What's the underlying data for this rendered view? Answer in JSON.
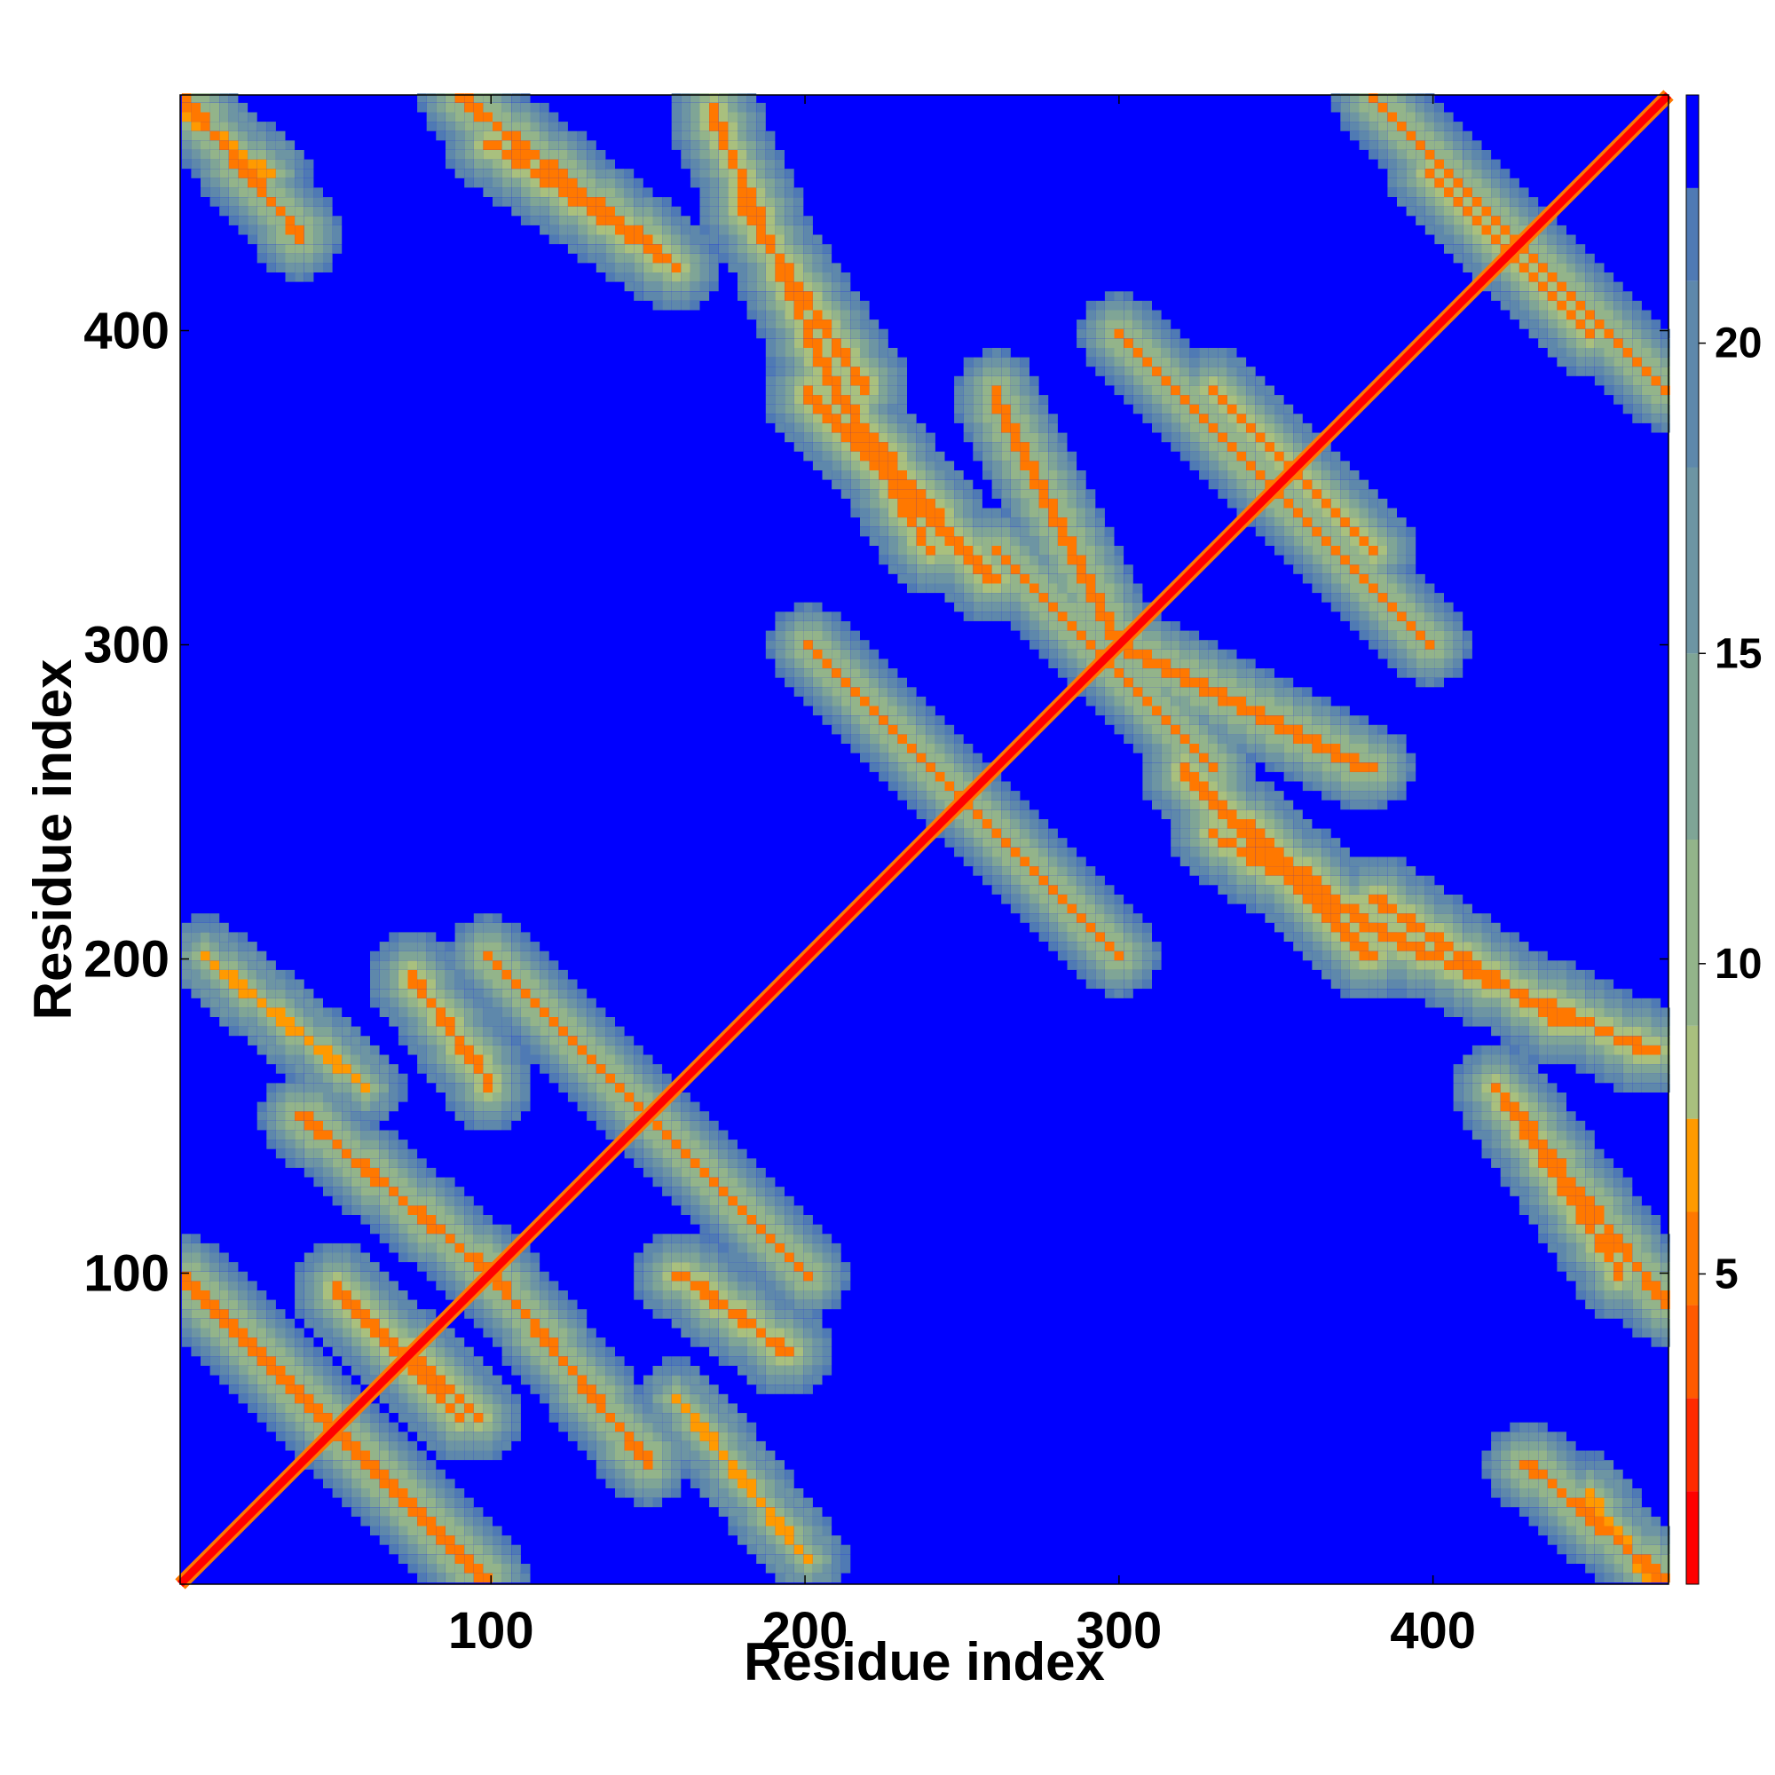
{
  "chart_data": {
    "type": "heatmap",
    "xlabel": "Residue index",
    "ylabel": "Residue index",
    "n_residues": 475,
    "xlim": [
      1,
      475
    ],
    "ylim": [
      1,
      475
    ],
    "x_ticks": [
      100,
      200,
      300,
      400
    ],
    "y_ticks": [
      100,
      200,
      300,
      400
    ],
    "x_tick_labels": [
      "100",
      "200",
      "300",
      "400"
    ],
    "y_tick_labels": [
      "100",
      "200",
      "300",
      "400"
    ],
    "colorbar": {
      "range": [
        0,
        24
      ],
      "ticks": [
        5,
        10,
        15,
        20
      ],
      "tick_labels": [
        "5",
        "10",
        "15",
        "20"
      ],
      "levels": [
        {
          "upper": 1.5,
          "color": "#ff0000"
        },
        {
          "upper": 3.0,
          "color": "#ff2a00"
        },
        {
          "upper": 4.5,
          "color": "#ff5a00"
        },
        {
          "upper": 6.0,
          "color": "#ff7800"
        },
        {
          "upper": 7.5,
          "color": "#ff9a00"
        },
        {
          "upper": 9.0,
          "color": "#a9c07e"
        },
        {
          "upper": 12.0,
          "color": "#93b48a"
        },
        {
          "upper": 15.0,
          "color": "#7fa596"
        },
        {
          "upper": 18.0,
          "color": "#6d95a3"
        },
        {
          "upper": 21.0,
          "color": "#5e88ab"
        },
        {
          "upper": 22.5,
          "color": "#4f7ab4"
        },
        {
          "upper": 24.0,
          "color": "#0000ff"
        }
      ]
    },
    "background_color": "#0000ff",
    "diagonal_color": "#ff0000",
    "contact_bands": [
      {
        "i_start": 1,
        "i_end": 100,
        "j_start": 100,
        "j_end": 1,
        "min_distance": 6
      },
      {
        "i_start": 50,
        "i_end": 95,
        "j_start": 95,
        "j_end": 55,
        "min_distance": 5
      },
      {
        "i_start": 55,
        "i_end": 90,
        "j_start": 90,
        "j_end": 55,
        "min_distance": 5
      },
      {
        "i_start": 75,
        "i_end": 100,
        "j_start": 195,
        "j_end": 160,
        "min_distance": 5
      },
      {
        "i_start": 160,
        "i_end": 195,
        "j_start": 100,
        "j_end": 75,
        "min_distance": 5
      },
      {
        "i_start": 100,
        "i_end": 200,
        "j_start": 200,
        "j_end": 100,
        "min_distance": 6
      },
      {
        "i_start": 160,
        "i_end": 200,
        "j_start": 60,
        "j_end": 10,
        "min_distance": 7
      },
      {
        "i_start": 10,
        "i_end": 60,
        "j_start": 200,
        "j_end": 160,
        "min_distance": 7
      },
      {
        "i_start": 100,
        "i_end": 150,
        "j_start": 100,
        "j_end": 40,
        "min_distance": 6
      },
      {
        "i_start": 40,
        "i_end": 100,
        "j_start": 150,
        "j_end": 100,
        "min_distance": 6
      },
      {
        "i_start": 200,
        "i_end": 300,
        "j_start": 300,
        "j_end": 200,
        "min_distance": 6
      },
      {
        "i_start": 210,
        "i_end": 250,
        "j_start": 380,
        "j_end": 330,
        "min_distance": 5
      },
      {
        "i_start": 330,
        "i_end": 380,
        "j_start": 250,
        "j_end": 210,
        "min_distance": 5
      },
      {
        "i_start": 260,
        "i_end": 330,
        "j_start": 330,
        "j_end": 260,
        "min_distance": 6
      },
      {
        "i_start": 300,
        "i_end": 400,
        "j_start": 400,
        "j_end": 300,
        "min_distance": 6
      },
      {
        "i_start": 330,
        "i_end": 380,
        "j_start": 380,
        "j_end": 330,
        "min_distance": 5
      },
      {
        "i_start": 380,
        "i_end": 475,
        "j_start": 475,
        "j_end": 380,
        "min_distance": 6
      },
      {
        "i_start": 400,
        "i_end": 450,
        "j_start": 450,
        "j_end": 400,
        "min_distance": 5
      },
      {
        "i_start": 380,
        "i_end": 440,
        "j_start": 220,
        "j_end": 180,
        "min_distance": 5
      },
      {
        "i_start": 180,
        "i_end": 220,
        "j_start": 440,
        "j_end": 380,
        "min_distance": 5
      },
      {
        "i_start": 420,
        "i_end": 475,
        "j_start": 160,
        "j_end": 90,
        "min_distance": 6
      },
      {
        "i_start": 90,
        "i_end": 160,
        "j_start": 475,
        "j_end": 420,
        "min_distance": 6
      },
      {
        "i_start": 430,
        "i_end": 475,
        "j_start": 40,
        "j_end": 1,
        "min_distance": 6
      },
      {
        "i_start": 1,
        "i_end": 40,
        "j_start": 475,
        "j_end": 430,
        "min_distance": 6
      },
      {
        "i_start": 1,
        "i_end": 30,
        "j_start": 470,
        "j_end": 450,
        "min_distance": 7
      },
      {
        "i_start": 450,
        "i_end": 470,
        "j_start": 30,
        "j_end": 1,
        "min_distance": 7
      },
      {
        "i_start": 100,
        "i_end": 160,
        "j_start": 460,
        "j_end": 420,
        "min_distance": 5
      },
      {
        "i_start": 420,
        "i_end": 460,
        "j_start": 160,
        "j_end": 100,
        "min_distance": 5
      },
      {
        "i_start": 170,
        "i_end": 210,
        "j_start": 470,
        "j_end": 380,
        "min_distance": 5
      },
      {
        "i_start": 380,
        "i_end": 470,
        "j_start": 210,
        "j_end": 170,
        "min_distance": 5
      },
      {
        "i_start": 200,
        "i_end": 240,
        "j_start": 400,
        "j_end": 330,
        "min_distance": 5
      },
      {
        "i_start": 330,
        "i_end": 400,
        "j_start": 240,
        "j_end": 200,
        "min_distance": 5
      },
      {
        "i_start": 260,
        "i_end": 300,
        "j_start": 380,
        "j_end": 300,
        "min_distance": 6
      },
      {
        "i_start": 300,
        "i_end": 380,
        "j_start": 300,
        "j_end": 260,
        "min_distance": 6
      },
      {
        "i_start": 320,
        "i_end": 380,
        "j_start": 260,
        "j_end": 200,
        "min_distance": 5
      },
      {
        "i_start": 200,
        "i_end": 260,
        "j_start": 380,
        "j_end": 320,
        "min_distance": 5
      }
    ]
  }
}
